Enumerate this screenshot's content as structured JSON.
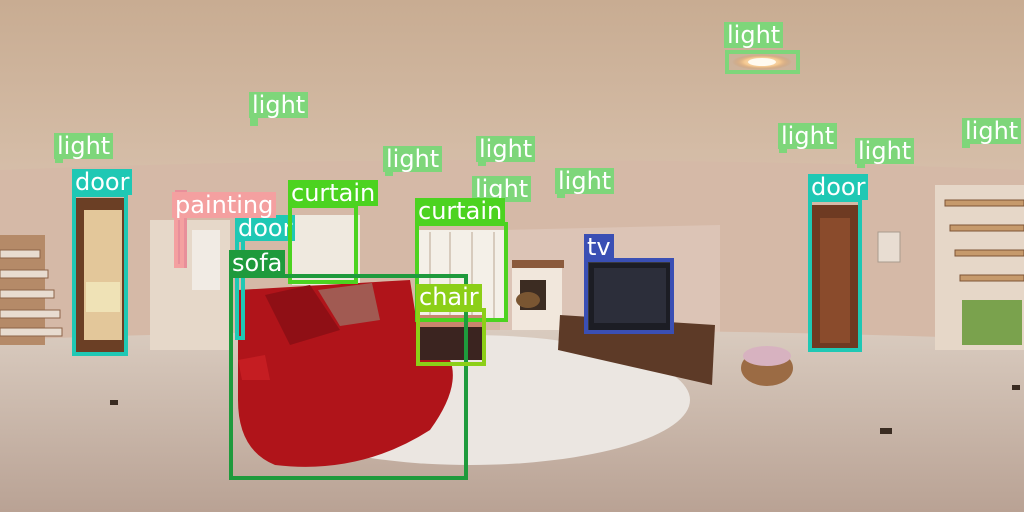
{
  "scene": {
    "type": "equirectangular-living-room-panorama",
    "colors": {
      "ceiling": "#c5a98f",
      "wall": "#d2b4a2",
      "floor": "#c9b7aa",
      "sofa": "#b0141a",
      "rug": "#e7e2dc",
      "tv_cabinet": "#5d3a27",
      "door_frame": "#5a2f1e",
      "window": "#f2eee6"
    }
  },
  "detections": [
    {
      "label": "light",
      "color": "#7ed67a"
    },
    {
      "label": "light",
      "color": "#7ed67a"
    },
    {
      "label": "light",
      "color": "#7ed67a"
    },
    {
      "label": "light",
      "color": "#7ed67a"
    },
    {
      "label": "light",
      "color": "#7ed67a"
    },
    {
      "label": "light",
      "color": "#7ed67a"
    },
    {
      "label": "light",
      "color": "#7ed67a"
    },
    {
      "label": "light",
      "color": "#7ed67a"
    },
    {
      "label": "light",
      "color": "#7ed67a"
    },
    {
      "label": "light",
      "color": "#7ed67a"
    },
    {
      "label": "door",
      "color": "#1fc8b4"
    },
    {
      "label": "door",
      "color": "#1fc8b4"
    },
    {
      "label": "door",
      "color": "#1fc8b4"
    },
    {
      "label": "painting",
      "color": "#f4a0a0"
    },
    {
      "label": "curtain",
      "color": "#4cd320"
    },
    {
      "label": "curtain",
      "color": "#4cd320"
    },
    {
      "label": "sofa",
      "color": "#1e9a3c"
    },
    {
      "label": "chair",
      "color": "#8ccf18"
    },
    {
      "label": "tv",
      "color": "#3a4fb4"
    }
  ]
}
